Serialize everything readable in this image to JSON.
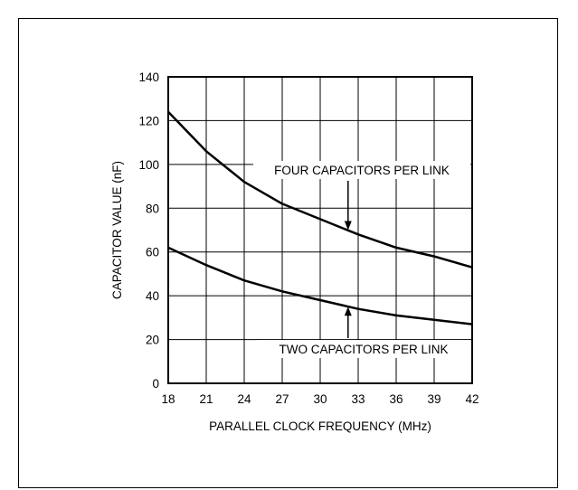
{
  "chart_data": {
    "type": "line",
    "title": "",
    "xlabel": "PARALLEL CLOCK FREQUENCY (MHz)",
    "ylabel": "CAPACITOR VALUE (nF)",
    "xlim": [
      18,
      42
    ],
    "ylim": [
      0,
      140
    ],
    "x_ticks": [
      18,
      21,
      24,
      27,
      30,
      33,
      36,
      39,
      42
    ],
    "y_ticks": [
      0,
      20,
      40,
      60,
      80,
      100,
      120,
      140
    ],
    "grid": true,
    "series": [
      {
        "name": "FOUR CAPACITORS PER LINK",
        "x": [
          18,
          21,
          24,
          27,
          30,
          33,
          36,
          39,
          42
        ],
        "values": [
          124,
          106,
          92,
          82,
          75,
          68,
          62,
          58,
          53
        ]
      },
      {
        "name": "TWO CAPACITORS PER LINK",
        "x": [
          18,
          21,
          24,
          27,
          30,
          33,
          36,
          39,
          42
        ],
        "values": [
          62,
          54,
          47,
          42,
          38,
          34,
          31,
          29,
          27
        ]
      }
    ],
    "annotations": [
      {
        "text": "FOUR CAPACITORS PER LINK",
        "arrow_to_x": 32.2,
        "arrow_to_y": 70
      },
      {
        "text": "TWO CAPACITORS PER LINK",
        "arrow_to_x": 32.2,
        "arrow_to_y": 35
      }
    ]
  }
}
